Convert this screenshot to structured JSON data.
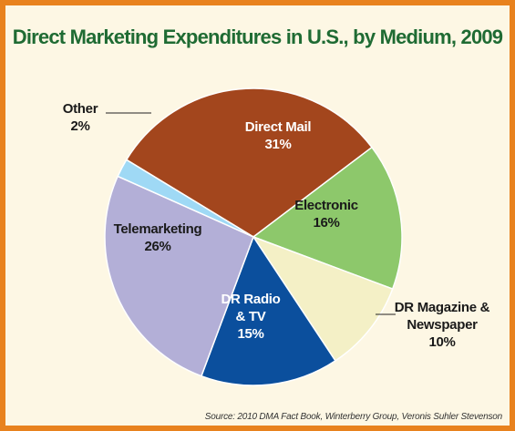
{
  "chart_data": {
    "type": "pie",
    "title": "Direct Marketing Expenditures in U.S., by Medium, 2009",
    "categories": [
      "Direct Mail",
      "Electronic",
      "DR Magazine & Newspaper",
      "DR Radio & TV",
      "Telemarketing",
      "Other"
    ],
    "values": [
      31,
      16,
      10,
      15,
      26,
      2
    ],
    "value_labels": [
      "31%",
      "16%",
      "10%",
      "15%",
      "26%",
      "2%"
    ],
    "colors": [
      "#a3461d",
      "#8dc86b",
      "#f4f0c6",
      "#0b4f9d",
      "#b3afd7",
      "#9fd9f5"
    ],
    "source": "Source: 2010 DMA Fact Book, Winterberry Group, Veronis Suhler Stevenson"
  }
}
